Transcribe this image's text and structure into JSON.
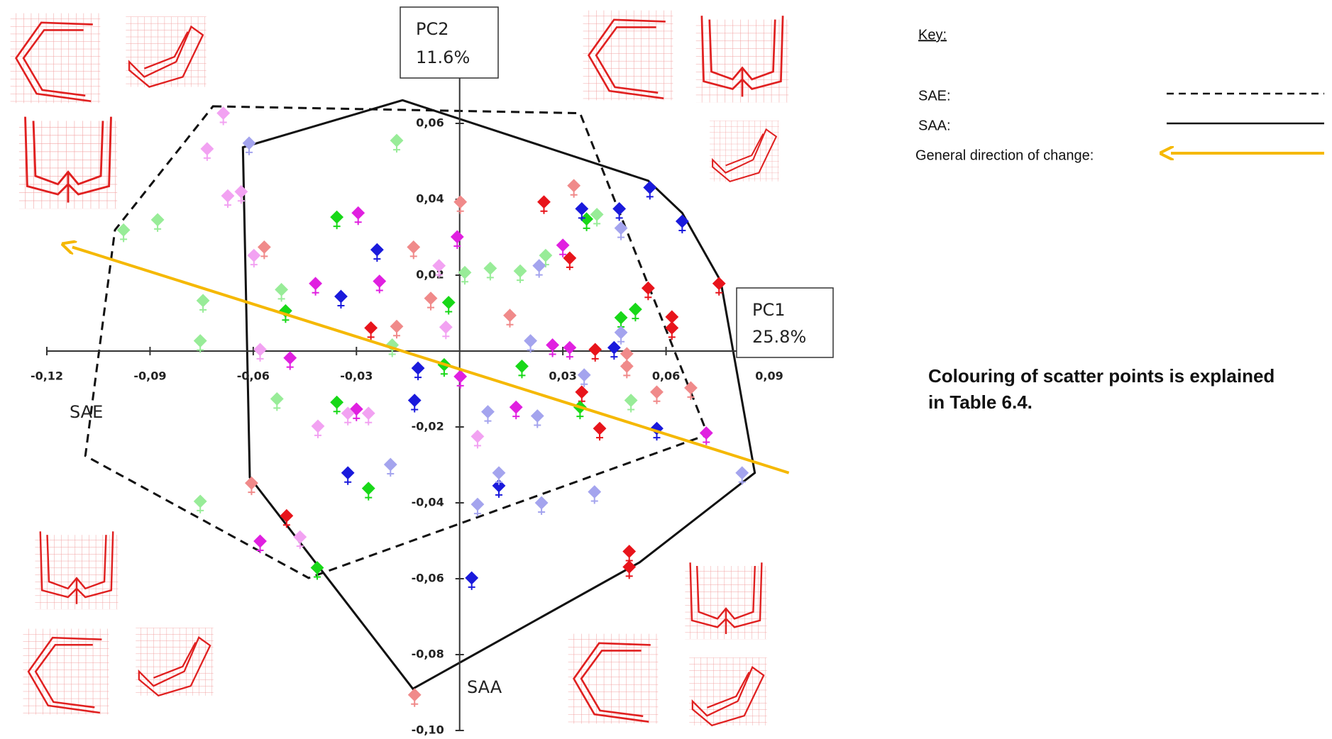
{
  "chart_data": {
    "type": "scatter",
    "xlim": [
      -0.12,
      0.09
    ],
    "ylim": [
      -0.1,
      0.06
    ],
    "xticks": [
      {
        "value": -0.12,
        "label": "-0,12"
      },
      {
        "value": -0.09,
        "label": "-0,09"
      },
      {
        "value": -0.06,
        "label": "-0,06"
      },
      {
        "value": -0.03,
        "label": "-0,03"
      },
      {
        "value": 0.03,
        "label": "0,03"
      },
      {
        "value": 0.06,
        "label": "0,06"
      },
      {
        "value": 0.09,
        "label": "0,09"
      }
    ],
    "yticks": [
      {
        "value": 0.06,
        "label": "0,06"
      },
      {
        "value": 0.04,
        "label": "0,04"
      },
      {
        "value": 0.02,
        "label": "0,02"
      },
      {
        "value": -0.02,
        "label": "-0,02"
      },
      {
        "value": -0.04,
        "label": "-0,04"
      },
      {
        "value": -0.06,
        "label": "-0,06"
      },
      {
        "value": -0.08,
        "label": "-0,08"
      },
      {
        "value": -0.1,
        "label": "-0,10"
      }
    ],
    "x_label": {
      "name": "PC1",
      "variance": "25.8%"
    },
    "y_label": {
      "name": "PC2",
      "variance": "11.6%"
    },
    "series": [
      {
        "color": "#e8141b",
        "x": [
          0.0245,
          0.032,
          0.0548,
          -0.0258,
          0.0617,
          0.0617,
          0.0394,
          0.0355,
          0.0407,
          -0.0503,
          0.0493,
          0.0493,
          0.0754
        ],
        "values": [
          0.0393,
          0.0245,
          0.0166,
          0.0061,
          0.009,
          0.0061,
          0.0004,
          -0.0108,
          -0.0204,
          -0.0434,
          -0.0528,
          -0.0569,
          0.0178
        ]
      },
      {
        "color": "#f08a8a",
        "x": [
          0.0002,
          0.0332,
          -0.0134,
          0.0146,
          -0.0183,
          -0.0084,
          0.0486,
          0.0486,
          0.0573,
          0.0672,
          -0.0568,
          -0.0605,
          -0.0131
        ],
        "values": [
          0.0393,
          0.0436,
          0.0274,
          0.0094,
          0.0065,
          0.0139,
          -0.0007,
          -0.004,
          -0.0108,
          -0.0097,
          0.0274,
          -0.0348,
          -0.0906
        ]
      },
      {
        "color": "#e020e0",
        "x": [
          -0.0295,
          -0.0233,
          -0.0419,
          0.03,
          0.027,
          0.032,
          0.0164,
          0.0002,
          -0.0493,
          -0.03,
          -0.058,
          0.0717,
          -0.0007
        ],
        "values": [
          0.0364,
          0.0184,
          0.0178,
          0.0279,
          0.0016,
          0.0009,
          -0.0148,
          -0.0067,
          -0.0018,
          -0.0153,
          -0.0501,
          -0.0216,
          0.0301
        ]
      },
      {
        "color": "#f2a2f2",
        "x": [
          -0.0687,
          -0.0734,
          -0.0635,
          -0.0674,
          -0.0598,
          -0.004,
          -0.006,
          -0.0412,
          0.0052,
          -0.0265,
          -0.0325,
          -0.0464,
          -0.058
        ],
        "values": [
          0.0627,
          0.0533,
          0.042,
          0.0409,
          0.0252,
          0.0063,
          0.0225,
          -0.0198,
          -0.0225,
          -0.0164,
          -0.0164,
          -0.049,
          0.0004
        ]
      },
      {
        "color": "#18d818",
        "x": [
          -0.0357,
          -0.0032,
          -0.0506,
          0.0181,
          0.0469,
          0.0511,
          -0.0357,
          -0.0265,
          0.0369,
          -0.0414,
          -0.0045,
          0.035
        ],
        "values": [
          0.0353,
          0.0128,
          0.0106,
          -0.004,
          0.0088,
          0.011,
          -0.0135,
          -0.0362,
          0.0348,
          -0.0571,
          -0.0036,
          -0.0148
        ]
      },
      {
        "color": "#98ec98",
        "x": [
          -0.0878,
          -0.0977,
          -0.0183,
          0.0015,
          0.0089,
          0.0176,
          0.025,
          0.0399,
          -0.0518,
          -0.0746,
          -0.0754,
          -0.0531,
          0.0498,
          -0.0754,
          -0.0196
        ],
        "values": [
          0.0346,
          0.0319,
          0.0555,
          0.0207,
          0.0218,
          0.0211,
          0.0252,
          0.036,
          0.0162,
          0.0133,
          0.0027,
          -0.0126,
          -0.013,
          -0.0396,
          0.0016
        ]
      },
      {
        "color": "#1a1adc",
        "x": [
          -0.024,
          -0.0345,
          -0.0121,
          -0.0131,
          0.0355,
          0.0464,
          0.0553,
          0.0647,
          0.0449,
          0.0573,
          -0.0325,
          0.0114,
          0.0035
        ],
        "values": [
          0.0267,
          0.0144,
          -0.0045,
          -0.013,
          0.0375,
          0.0375,
          0.0431,
          0.0342,
          0.0009,
          -0.0204,
          -0.0321,
          -0.0355,
          -0.0598
        ]
      },
      {
        "color": "#a4a4ee",
        "x": [
          -0.0612,
          0.0231,
          0.0206,
          0.0469,
          0.0469,
          0.0082,
          0.0226,
          -0.0201,
          0.0114,
          0.0052,
          0.0238,
          0.0392,
          0.0362,
          0.0821
        ],
        "values": [
          0.0548,
          0.0225,
          0.0027,
          0.0049,
          0.0324,
          -0.016,
          -0.0171,
          -0.0299,
          -0.0321,
          -0.0404,
          -0.04,
          -0.0371,
          -0.0063,
          -0.0321
        ]
      }
    ],
    "outlines": [
      {
        "label": "SAE",
        "line_style": "dashed",
        "x": [
          -0.0717,
          0.035,
          0.0721,
          -0.0439,
          -0.1088,
          -0.1002
        ],
        "y": [
          0.0645,
          0.0627,
          -0.022,
          -0.0598,
          -0.0276,
          0.0319
        ]
      },
      {
        "label": "SAA",
        "line_style": "solid",
        "x": [
          -0.063,
          -0.0166,
          0.0548,
          0.0647,
          0.0759,
          0.0858,
          0.0523,
          -0.0136,
          -0.061
        ],
        "y": [
          0.0537,
          0.0661,
          0.0449,
          0.0364,
          0.0184,
          -0.0321,
          -0.0557,
          -0.089,
          -0.0333
        ]
      }
    ],
    "direction": {
      "color": "#f5b800",
      "x": [
        0.0957,
        -0.1126
      ],
      "y": [
        -0.0321,
        0.0274
      ]
    },
    "key": {
      "title": "Key:",
      "items": [
        {
          "label": "SAE:",
          "style": "dashed"
        },
        {
          "label": "SAA:",
          "style": "solid"
        },
        {
          "label": "General direction of change:",
          "style": "arrow"
        }
      ]
    },
    "note": [
      "Colouring of scatter points is explained",
      "in Table 6.4."
    ]
  }
}
